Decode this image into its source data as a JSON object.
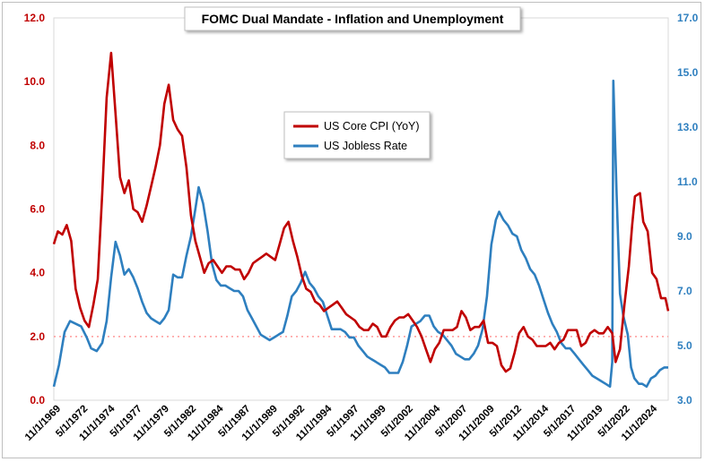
{
  "chart_data": {
    "type": "line",
    "title": "FOMC Dual Mandate - Inflation and Unemployment",
    "y_left": {
      "ticks": [
        "0.0",
        "2.0",
        "4.0",
        "6.0",
        "8.0",
        "10.0",
        "12.0"
      ],
      "range": [
        0,
        12
      ],
      "color": "#c00000"
    },
    "y_right": {
      "ticks": [
        "3.0",
        "5.0",
        "7.0",
        "9.0",
        "11.0",
        "13.0",
        "15.0",
        "17.0"
      ],
      "range": [
        3,
        17
      ],
      "color": "#2e7fbf"
    },
    "x_ticks": [
      "11/1/1969",
      "5/1/1972",
      "11/1/1974",
      "5/1/1977",
      "11/1/1979",
      "5/1/1982",
      "11/1/1984",
      "5/1/1987",
      "11/1/1989",
      "5/1/1992",
      "11/1/1994",
      "5/1/1997",
      "11/1/1999",
      "5/1/2002",
      "11/1/2004",
      "5/1/2007",
      "11/1/2009",
      "5/1/2012",
      "11/1/2014",
      "5/1/2017",
      "11/1/2019",
      "5/1/2022",
      "11/1/2024"
    ],
    "x_range": [
      1969.833,
      2025.25
    ],
    "reference_line": {
      "value": 2.0,
      "axis": "left",
      "color": "#ff9999"
    },
    "legend_position": "center",
    "series": [
      {
        "name": "US Core CPI (YoY)",
        "axis": "left",
        "color": "#c00000",
        "points": [
          [
            1969.83,
            4.9
          ],
          [
            1970.2,
            5.3
          ],
          [
            1970.6,
            5.2
          ],
          [
            1971.0,
            5.5
          ],
          [
            1971.4,
            5.0
          ],
          [
            1971.8,
            3.5
          ],
          [
            1972.2,
            2.9
          ],
          [
            1972.6,
            2.5
          ],
          [
            1973.0,
            2.3
          ],
          [
            1973.4,
            3.0
          ],
          [
            1973.8,
            3.8
          ],
          [
            1974.2,
            6.5
          ],
          [
            1974.6,
            9.5
          ],
          [
            1975.0,
            10.9
          ],
          [
            1975.4,
            9.0
          ],
          [
            1975.8,
            7.0
          ],
          [
            1976.2,
            6.5
          ],
          [
            1976.6,
            6.9
          ],
          [
            1977.0,
            6.0
          ],
          [
            1977.4,
            5.9
          ],
          [
            1977.8,
            5.6
          ],
          [
            1978.2,
            6.1
          ],
          [
            1978.6,
            6.7
          ],
          [
            1979.0,
            7.3
          ],
          [
            1979.4,
            8.0
          ],
          [
            1979.8,
            9.3
          ],
          [
            1980.2,
            9.9
          ],
          [
            1980.6,
            8.8
          ],
          [
            1981.0,
            8.5
          ],
          [
            1981.4,
            8.3
          ],
          [
            1981.8,
            7.3
          ],
          [
            1982.2,
            5.8
          ],
          [
            1982.6,
            5.0
          ],
          [
            1983.0,
            4.5
          ],
          [
            1983.4,
            4.0
          ],
          [
            1983.8,
            4.3
          ],
          [
            1984.2,
            4.4
          ],
          [
            1984.6,
            4.2
          ],
          [
            1985.0,
            4.0
          ],
          [
            1985.4,
            4.2
          ],
          [
            1985.8,
            4.2
          ],
          [
            1986.2,
            4.1
          ],
          [
            1986.6,
            4.1
          ],
          [
            1987.0,
            3.8
          ],
          [
            1987.4,
            4.0
          ],
          [
            1987.8,
            4.3
          ],
          [
            1988.2,
            4.4
          ],
          [
            1988.6,
            4.5
          ],
          [
            1989.0,
            4.6
          ],
          [
            1989.4,
            4.5
          ],
          [
            1989.8,
            4.4
          ],
          [
            1990.2,
            4.9
          ],
          [
            1990.6,
            5.4
          ],
          [
            1991.0,
            5.6
          ],
          [
            1991.4,
            5.0
          ],
          [
            1991.8,
            4.5
          ],
          [
            1992.2,
            3.9
          ],
          [
            1992.6,
            3.5
          ],
          [
            1993.0,
            3.4
          ],
          [
            1993.4,
            3.1
          ],
          [
            1993.8,
            3.0
          ],
          [
            1994.2,
            2.8
          ],
          [
            1994.6,
            2.9
          ],
          [
            1995.0,
            3.0
          ],
          [
            1995.4,
            3.1
          ],
          [
            1995.8,
            2.9
          ],
          [
            1996.2,
            2.7
          ],
          [
            1996.6,
            2.6
          ],
          [
            1997.0,
            2.5
          ],
          [
            1997.4,
            2.3
          ],
          [
            1997.8,
            2.2
          ],
          [
            1998.2,
            2.2
          ],
          [
            1998.6,
            2.4
          ],
          [
            1999.0,
            2.3
          ],
          [
            1999.4,
            2.0
          ],
          [
            1999.8,
            2.0
          ],
          [
            2000.2,
            2.3
          ],
          [
            2000.6,
            2.5
          ],
          [
            2001.0,
            2.6
          ],
          [
            2001.4,
            2.6
          ],
          [
            2001.8,
            2.7
          ],
          [
            2002.2,
            2.5
          ],
          [
            2002.6,
            2.3
          ],
          [
            2003.0,
            2.0
          ],
          [
            2003.4,
            1.6
          ],
          [
            2003.8,
            1.2
          ],
          [
            2004.2,
            1.6
          ],
          [
            2004.6,
            1.8
          ],
          [
            2005.0,
            2.2
          ],
          [
            2005.4,
            2.2
          ],
          [
            2005.8,
            2.2
          ],
          [
            2006.2,
            2.3
          ],
          [
            2006.6,
            2.8
          ],
          [
            2007.0,
            2.6
          ],
          [
            2007.4,
            2.2
          ],
          [
            2007.8,
            2.3
          ],
          [
            2008.2,
            2.3
          ],
          [
            2008.6,
            2.5
          ],
          [
            2009.0,
            1.8
          ],
          [
            2009.4,
            1.8
          ],
          [
            2009.8,
            1.7
          ],
          [
            2010.2,
            1.1
          ],
          [
            2010.6,
            0.9
          ],
          [
            2011.0,
            1.0
          ],
          [
            2011.4,
            1.5
          ],
          [
            2011.8,
            2.1
          ],
          [
            2012.2,
            2.3
          ],
          [
            2012.6,
            2.0
          ],
          [
            2013.0,
            1.9
          ],
          [
            2013.4,
            1.7
          ],
          [
            2013.8,
            1.7
          ],
          [
            2014.2,
            1.7
          ],
          [
            2014.6,
            1.8
          ],
          [
            2015.0,
            1.6
          ],
          [
            2015.4,
            1.8
          ],
          [
            2015.8,
            1.9
          ],
          [
            2016.2,
            2.2
          ],
          [
            2016.6,
            2.2
          ],
          [
            2017.0,
            2.2
          ],
          [
            2017.4,
            1.7
          ],
          [
            2017.8,
            1.8
          ],
          [
            2018.2,
            2.1
          ],
          [
            2018.6,
            2.2
          ],
          [
            2019.0,
            2.1
          ],
          [
            2019.4,
            2.1
          ],
          [
            2019.8,
            2.3
          ],
          [
            2020.2,
            2.1
          ],
          [
            2020.5,
            1.2
          ],
          [
            2020.9,
            1.6
          ],
          [
            2021.3,
            3.0
          ],
          [
            2021.7,
            4.2
          ],
          [
            2022.0,
            5.5
          ],
          [
            2022.25,
            6.4
          ],
          [
            2022.7,
            6.5
          ],
          [
            2023.0,
            5.6
          ],
          [
            2023.4,
            5.3
          ],
          [
            2023.8,
            4.0
          ],
          [
            2024.2,
            3.8
          ],
          [
            2024.6,
            3.2
          ],
          [
            2025.0,
            3.2
          ],
          [
            2025.25,
            2.8
          ]
        ]
      },
      {
        "name": "US Jobless Rate",
        "axis": "right",
        "color": "#2e7fbf",
        "points": [
          [
            1969.83,
            3.5
          ],
          [
            1970.3,
            4.3
          ],
          [
            1970.8,
            5.5
          ],
          [
            1971.3,
            5.9
          ],
          [
            1971.8,
            5.8
          ],
          [
            1972.3,
            5.7
          ],
          [
            1972.8,
            5.3
          ],
          [
            1973.2,
            4.9
          ],
          [
            1973.7,
            4.8
          ],
          [
            1974.2,
            5.1
          ],
          [
            1974.6,
            5.9
          ],
          [
            1975.0,
            7.5
          ],
          [
            1975.4,
            8.8
          ],
          [
            1975.8,
            8.3
          ],
          [
            1976.2,
            7.6
          ],
          [
            1976.6,
            7.8
          ],
          [
            1977.0,
            7.5
          ],
          [
            1977.4,
            7.1
          ],
          [
            1977.8,
            6.6
          ],
          [
            1978.2,
            6.2
          ],
          [
            1978.6,
            6.0
          ],
          [
            1979.0,
            5.9
          ],
          [
            1979.4,
            5.8
          ],
          [
            1979.8,
            6.0
          ],
          [
            1980.2,
            6.3
          ],
          [
            1980.6,
            7.6
          ],
          [
            1981.0,
            7.5
          ],
          [
            1981.4,
            7.5
          ],
          [
            1981.8,
            8.3
          ],
          [
            1982.2,
            9.0
          ],
          [
            1982.6,
            10.0
          ],
          [
            1982.9,
            10.8
          ],
          [
            1983.3,
            10.2
          ],
          [
            1983.7,
            9.2
          ],
          [
            1984.1,
            8.0
          ],
          [
            1984.5,
            7.4
          ],
          [
            1984.9,
            7.2
          ],
          [
            1985.3,
            7.2
          ],
          [
            1985.7,
            7.1
          ],
          [
            1986.1,
            7.0
          ],
          [
            1986.5,
            7.0
          ],
          [
            1986.9,
            6.8
          ],
          [
            1987.3,
            6.3
          ],
          [
            1987.7,
            6.0
          ],
          [
            1988.1,
            5.7
          ],
          [
            1988.5,
            5.4
          ],
          [
            1988.9,
            5.3
          ],
          [
            1989.3,
            5.2
          ],
          [
            1989.7,
            5.3
          ],
          [
            1990.1,
            5.4
          ],
          [
            1990.5,
            5.5
          ],
          [
            1990.9,
            6.1
          ],
          [
            1991.3,
            6.8
          ],
          [
            1991.7,
            7.0
          ],
          [
            1992.1,
            7.3
          ],
          [
            1992.5,
            7.7
          ],
          [
            1992.9,
            7.3
          ],
          [
            1993.3,
            7.1
          ],
          [
            1993.7,
            6.8
          ],
          [
            1994.1,
            6.6
          ],
          [
            1994.5,
            6.1
          ],
          [
            1994.9,
            5.6
          ],
          [
            1995.3,
            5.6
          ],
          [
            1995.7,
            5.6
          ],
          [
            1996.1,
            5.5
          ],
          [
            1996.5,
            5.3
          ],
          [
            1996.9,
            5.3
          ],
          [
            1997.3,
            5.0
          ],
          [
            1997.7,
            4.8
          ],
          [
            1998.1,
            4.6
          ],
          [
            1998.5,
            4.5
          ],
          [
            1998.9,
            4.4
          ],
          [
            1999.3,
            4.3
          ],
          [
            1999.7,
            4.2
          ],
          [
            2000.1,
            4.0
          ],
          [
            2000.5,
            4.0
          ],
          [
            2000.9,
            4.0
          ],
          [
            2001.3,
            4.4
          ],
          [
            2001.7,
            5.0
          ],
          [
            2002.1,
            5.7
          ],
          [
            2002.5,
            5.8
          ],
          [
            2002.9,
            5.9
          ],
          [
            2003.3,
            6.1
          ],
          [
            2003.7,
            6.1
          ],
          [
            2004.1,
            5.7
          ],
          [
            2004.5,
            5.5
          ],
          [
            2004.9,
            5.4
          ],
          [
            2005.3,
            5.2
          ],
          [
            2005.7,
            5.0
          ],
          [
            2006.1,
            4.7
          ],
          [
            2006.5,
            4.6
          ],
          [
            2006.9,
            4.5
          ],
          [
            2007.3,
            4.5
          ],
          [
            2007.7,
            4.7
          ],
          [
            2008.1,
            5.0
          ],
          [
            2008.5,
            5.6
          ],
          [
            2008.9,
            6.8
          ],
          [
            2009.3,
            8.7
          ],
          [
            2009.7,
            9.6
          ],
          [
            2010.0,
            9.9
          ],
          [
            2010.4,
            9.6
          ],
          [
            2010.8,
            9.4
          ],
          [
            2011.2,
            9.1
          ],
          [
            2011.6,
            9.0
          ],
          [
            2012.0,
            8.5
          ],
          [
            2012.4,
            8.2
          ],
          [
            2012.8,
            7.8
          ],
          [
            2013.2,
            7.6
          ],
          [
            2013.6,
            7.2
          ],
          [
            2014.0,
            6.7
          ],
          [
            2014.4,
            6.2
          ],
          [
            2014.8,
            5.8
          ],
          [
            2015.2,
            5.5
          ],
          [
            2015.6,
            5.1
          ],
          [
            2016.0,
            4.9
          ],
          [
            2016.4,
            4.9
          ],
          [
            2016.8,
            4.7
          ],
          [
            2017.2,
            4.5
          ],
          [
            2017.6,
            4.3
          ],
          [
            2018.0,
            4.1
          ],
          [
            2018.4,
            3.9
          ],
          [
            2018.8,
            3.8
          ],
          [
            2019.2,
            3.7
          ],
          [
            2019.6,
            3.6
          ],
          [
            2020.0,
            3.5
          ],
          [
            2020.2,
            4.4
          ],
          [
            2020.3,
            14.7
          ],
          [
            2020.6,
            10.5
          ],
          [
            2020.9,
            6.9
          ],
          [
            2021.2,
            6.1
          ],
          [
            2021.6,
            5.4
          ],
          [
            2021.9,
            4.2
          ],
          [
            2022.2,
            3.8
          ],
          [
            2022.6,
            3.6
          ],
          [
            2022.9,
            3.6
          ],
          [
            2023.3,
            3.5
          ],
          [
            2023.7,
            3.8
          ],
          [
            2024.1,
            3.9
          ],
          [
            2024.5,
            4.1
          ],
          [
            2024.9,
            4.2
          ],
          [
            2025.25,
            4.2
          ]
        ]
      }
    ]
  }
}
